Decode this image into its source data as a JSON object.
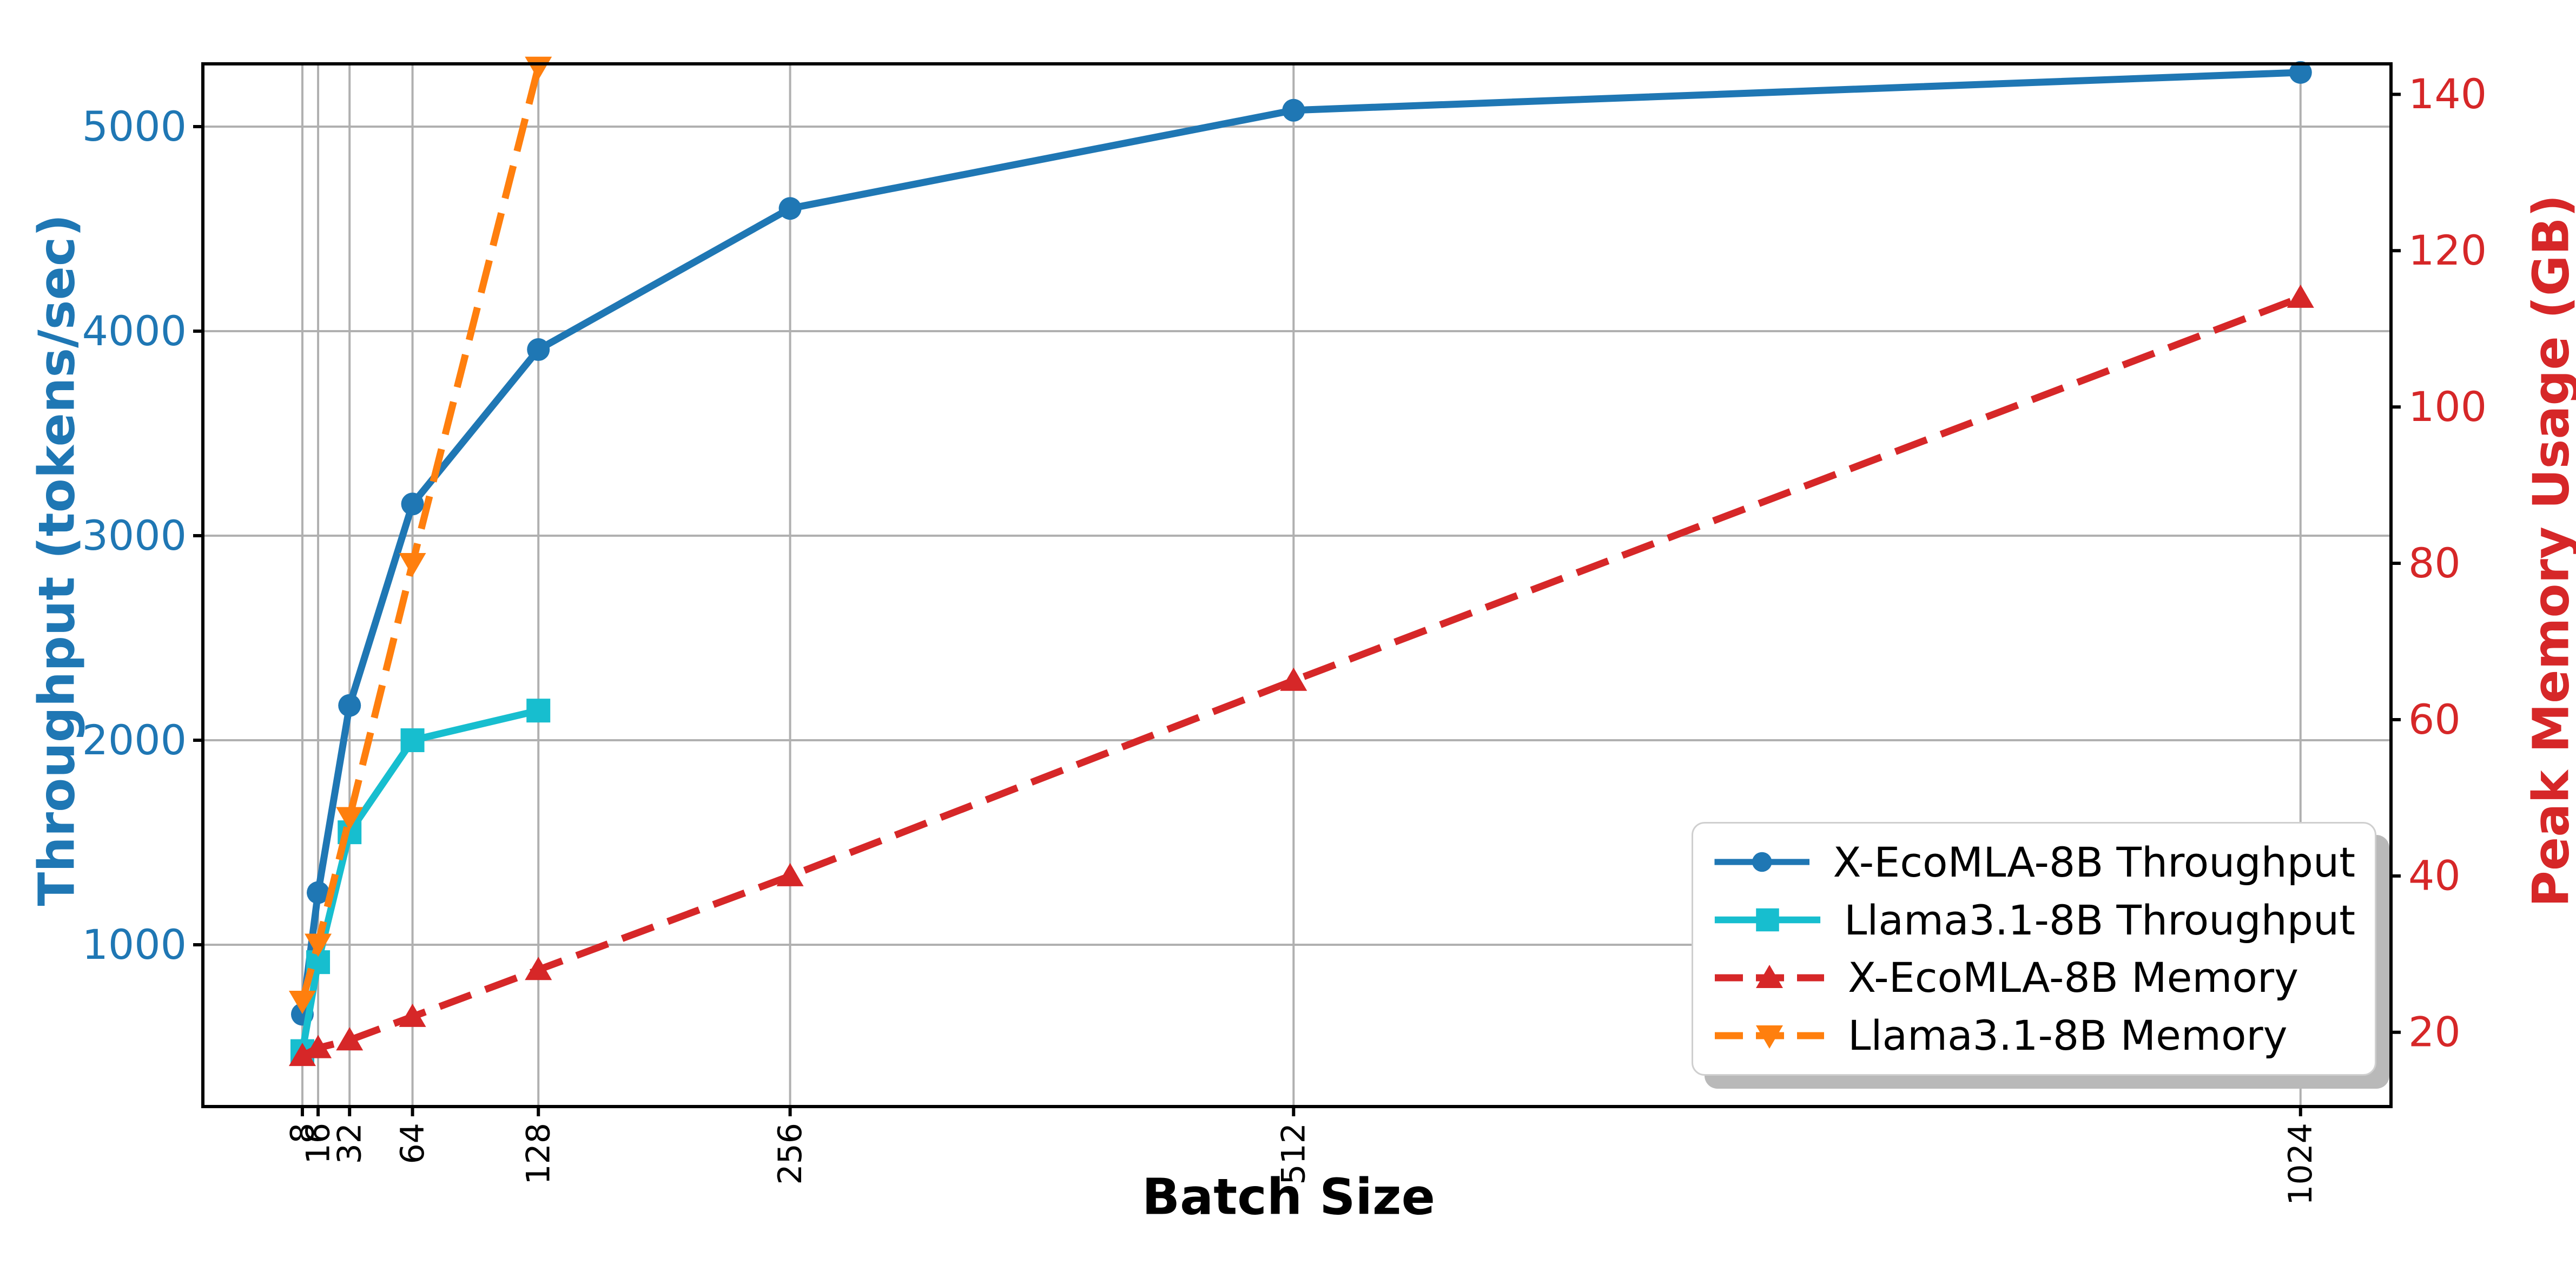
{
  "chart_data": {
    "type": "line",
    "xlabel": "Batch Size",
    "ylabel_left": "Throughput (tokens/sec)",
    "ylabel_right": "Peak Memory Usage (GB)",
    "axis_label_color_left": "#1f77b4",
    "axis_label_color_right": "#d62728",
    "grid": true,
    "grid_color": "#b0b0b0",
    "x_ticks": [
      8,
      16,
      32,
      64,
      128,
      256,
      512,
      1024
    ],
    "y_left_ticks": [
      1000,
      2000,
      3000,
      4000,
      5000
    ],
    "y_right_ticks": [
      20,
      40,
      60,
      80,
      100,
      120,
      140
    ],
    "xlim": [
      -42.6,
      1070
    ],
    "ylim_left": [
      209,
      5307
    ],
    "ylim_right": [
      10.5,
      143.9
    ],
    "legend_position": "lower right",
    "series": [
      {
        "name": "X-EcoMLA-8B Throughput",
        "axis": "left",
        "color": "#1f77b4",
        "style": "solid",
        "marker": "circle",
        "x": [
          8,
          16,
          32,
          64,
          128,
          256,
          512,
          1024
        ],
        "y": [
          660,
          1255,
          2170,
          3155,
          3910,
          4600,
          5080,
          5265
        ]
      },
      {
        "name": "Llama3.1-8B Throughput",
        "axis": "left",
        "color": "#17becf",
        "style": "solid",
        "marker": "square",
        "x": [
          8,
          16,
          32,
          64,
          128
        ],
        "y": [
          480,
          915,
          1550,
          2000,
          2145
        ]
      },
      {
        "name": "X-EcoMLA-8B Memory",
        "axis": "right",
        "color": "#d62728",
        "style": "dashed",
        "marker": "triangle-up",
        "x": [
          8,
          16,
          32,
          64,
          128,
          256,
          512,
          1024
        ],
        "y": [
          17,
          18,
          19,
          22,
          28,
          40,
          65,
          114
        ]
      },
      {
        "name": "Llama3.1-8B Memory",
        "axis": "right",
        "color": "#ff7f0e",
        "style": "dashed",
        "marker": "triangle-down",
        "x": [
          8,
          16,
          32,
          64,
          128
        ],
        "y": [
          24,
          31.3,
          47.5,
          80,
          143.5
        ]
      }
    ]
  }
}
